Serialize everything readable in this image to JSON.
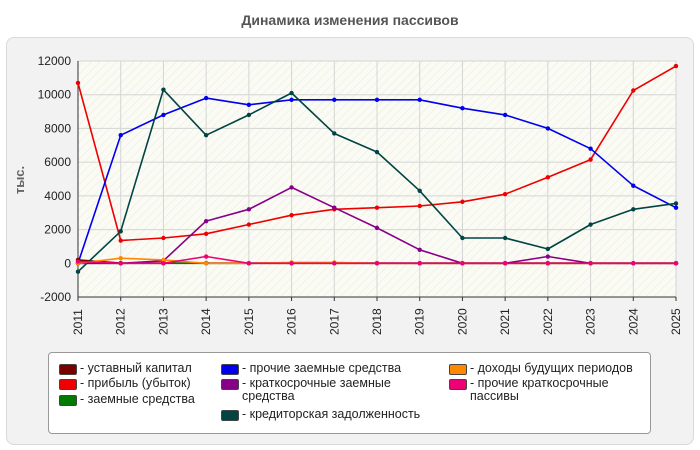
{
  "chart_data": {
    "type": "line",
    "title": "Динамика изменения пассивов",
    "ylabel": "тыс.",
    "xlabel": "",
    "x": [
      2011,
      2012,
      2013,
      2014,
      2015,
      2016,
      2017,
      2018,
      2019,
      2020,
      2021,
      2022,
      2023,
      2024,
      2025
    ],
    "ylim": [
      -2000,
      12000
    ],
    "yticks": [
      -2000,
      0,
      2000,
      4000,
      6000,
      8000,
      10000,
      12000
    ],
    "grid": true,
    "legend_position": "bottom",
    "series": [
      {
        "name": "уставный капитал",
        "color": "#7a0000",
        "values": [
          200,
          10,
          10,
          10,
          10,
          10,
          10,
          10,
          10,
          10,
          10,
          10,
          10,
          10,
          10
        ]
      },
      {
        "name": "прибыль (убыток)",
        "color": "#ee0000",
        "values": [
          10700,
          1350,
          1500,
          1750,
          2300,
          2850,
          3200,
          3300,
          3400,
          3650,
          4100,
          5100,
          6150,
          10250,
          11700
        ]
      },
      {
        "name": "заемные средства",
        "color": "#007a00",
        "values": [
          0,
          0,
          0,
          0,
          0,
          0,
          0,
          0,
          0,
          0,
          0,
          0,
          0,
          0,
          0
        ]
      },
      {
        "name": "прочие заемные средства",
        "color": "#0000ee",
        "values": [
          0,
          7600,
          8800,
          9800,
          9400,
          9700,
          9700,
          9700,
          9700,
          9200,
          8800,
          8000,
          6800,
          4600,
          3300
        ]
      },
      {
        "name": "краткосрочные заемные средства",
        "color": "#880088",
        "values": [
          0,
          0,
          150,
          2500,
          3200,
          4500,
          3300,
          2100,
          800,
          0,
          0,
          400,
          0,
          0,
          0
        ]
      },
      {
        "name": "кредиторская задолженность",
        "color": "#004444",
        "values": [
          -500,
          1900,
          10300,
          7600,
          8800,
          10100,
          7700,
          6600,
          4300,
          1500,
          1500,
          850,
          2300,
          3200,
          3550
        ]
      },
      {
        "name": "доходы будущих периодов",
        "color": "#ff8800",
        "values": [
          0,
          300,
          200,
          0,
          0,
          50,
          50,
          0,
          0,
          0,
          0,
          0,
          0,
          0,
          0
        ]
      },
      {
        "name": "прочие краткосрочные пассивы",
        "color": "#ee0077",
        "values": [
          100,
          0,
          0,
          400,
          0,
          0,
          0,
          0,
          0,
          0,
          0,
          0,
          0,
          0,
          0
        ]
      }
    ]
  }
}
